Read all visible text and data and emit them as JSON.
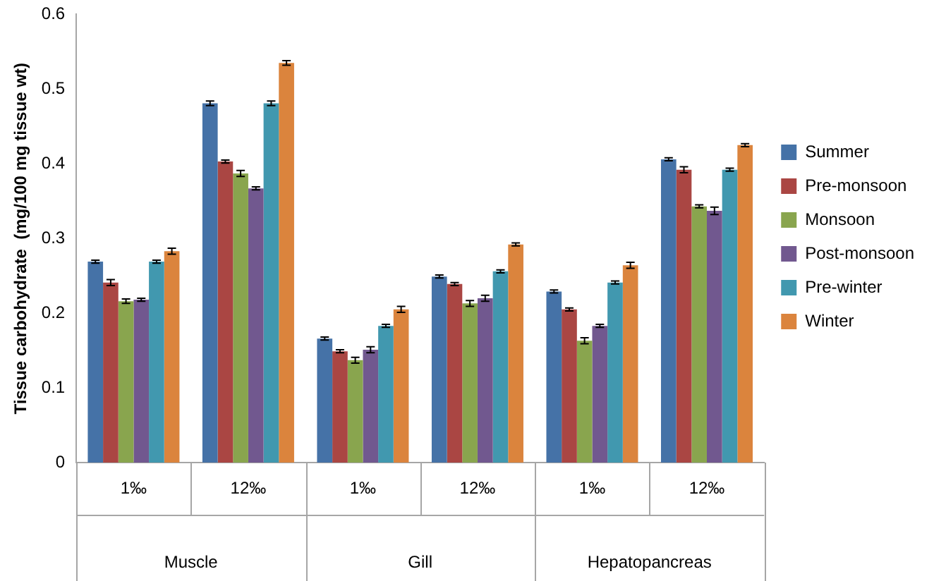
{
  "chart_data": {
    "type": "bar",
    "ylabel": "Tissue carbohydrate  (mg/100 mg tissue wt)",
    "categories": [
      "1‰",
      "12‰",
      "1‰",
      "12‰",
      "1‰",
      "12‰"
    ],
    "annotations": [
      "Muscle",
      "Gill",
      "Hepatopancreas"
    ],
    "ylim": [
      0,
      0.6
    ],
    "yticks": [
      0,
      0.1,
      0.2,
      0.3,
      0.4,
      0.5,
      0.6
    ],
    "grid": false,
    "legend": "right",
    "series": [
      {
        "name": "Summer",
        "color": "#4572a7",
        "values": [
          0.269,
          0.481,
          0.166,
          0.249,
          0.229,
          0.406
        ],
        "errors": [
          0.002,
          0.003,
          0.002,
          0.002,
          0.002,
          0.002
        ]
      },
      {
        "name": "Pre-monsoon",
        "color": "#aa4643",
        "values": [
          0.241,
          0.403,
          0.149,
          0.239,
          0.205,
          0.392
        ],
        "errors": [
          0.004,
          0.002,
          0.002,
          0.002,
          0.002,
          0.004
        ]
      },
      {
        "name": "Monsoon",
        "color": "#89a54e",
        "values": [
          0.216,
          0.387,
          0.137,
          0.213,
          0.163,
          0.343
        ],
        "errors": [
          0.003,
          0.004,
          0.004,
          0.004,
          0.004,
          0.002
        ]
      },
      {
        "name": "Post-monsoon",
        "color": "#71588f",
        "values": [
          0.218,
          0.367,
          0.151,
          0.22,
          0.183,
          0.337
        ],
        "errors": [
          0.002,
          0.002,
          0.004,
          0.004,
          0.002,
          0.005
        ]
      },
      {
        "name": "Pre-winter",
        "color": "#4198af",
        "values": [
          0.269,
          0.481,
          0.183,
          0.256,
          0.241,
          0.392
        ],
        "errors": [
          0.002,
          0.003,
          0.002,
          0.002,
          0.002,
          0.002
        ]
      },
      {
        "name": "Winter",
        "color": "#db843d",
        "values": [
          0.283,
          0.535,
          0.205,
          0.292,
          0.264,
          0.425
        ],
        "errors": [
          0.004,
          0.003,
          0.004,
          0.002,
          0.004,
          0.002
        ]
      }
    ]
  }
}
